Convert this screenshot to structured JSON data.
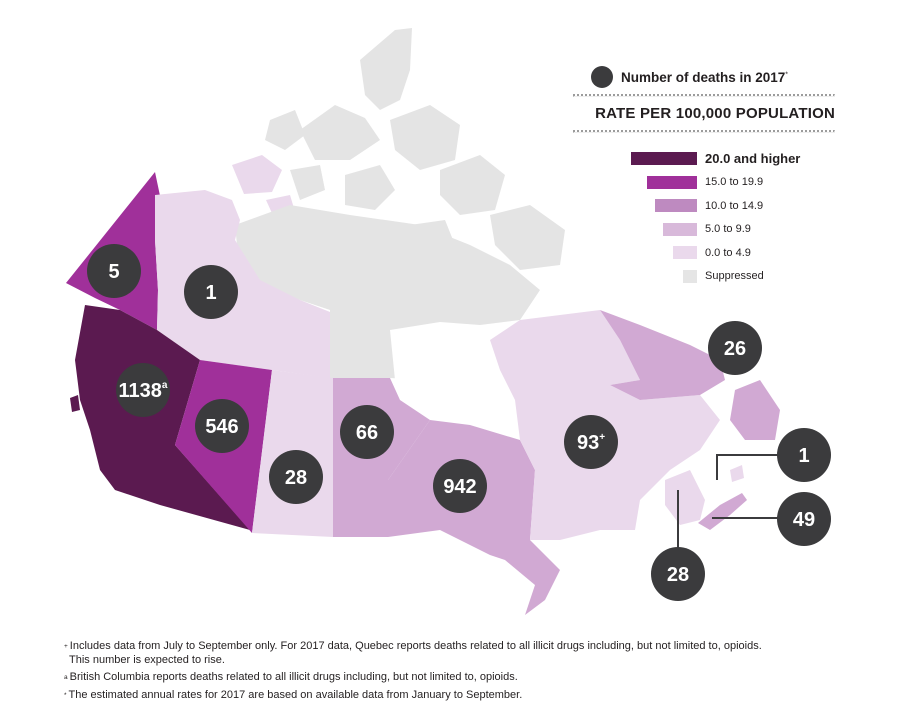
{
  "legend": {
    "count_label": "Number of deaths in 2017",
    "count_marker": "*",
    "rate_title": "RATE PER 100,000 POPULATION",
    "items": [
      {
        "label": "20.0 and higher",
        "color": "#5b1a50",
        "bold": true
      },
      {
        "label": "15.0 to 19.9",
        "color": "#a0309a"
      },
      {
        "label": "10.0 to 14.9",
        "color": "#be8ac0"
      },
      {
        "label": "5.0 to 9.9",
        "color": "#d8b9da"
      },
      {
        "label": "0.0 to 4.9",
        "color": "#ead9ec"
      },
      {
        "label": "Suppressed",
        "color": "#e5e5e5"
      }
    ]
  },
  "regions": [
    {
      "name": "British Columbia",
      "deaths": "1138",
      "marker": "a",
      "category": "20.0 and higher"
    },
    {
      "name": "Yukon",
      "deaths": "5",
      "marker": "",
      "category": "15.0 to 19.9"
    },
    {
      "name": "Northwest Territories",
      "deaths": "1",
      "marker": "",
      "category": "0.0 to 4.9"
    },
    {
      "name": "Nunavut",
      "deaths": "",
      "marker": "",
      "category": "Suppressed"
    },
    {
      "name": "Alberta",
      "deaths": "546",
      "marker": "",
      "category": "15.0 to 19.9"
    },
    {
      "name": "Saskatchewan",
      "deaths": "28",
      "marker": "",
      "category": "0.0 to 4.9"
    },
    {
      "name": "Manitoba",
      "deaths": "66",
      "marker": "",
      "category": "5.0 to 9.9"
    },
    {
      "name": "Ontario",
      "deaths": "942",
      "marker": "",
      "category": "5.0 to 9.9"
    },
    {
      "name": "Quebec",
      "deaths": "93",
      "marker": "+",
      "category": "0.0 to 4.9"
    },
    {
      "name": "Newfoundland and Labrador",
      "deaths": "26",
      "marker": "",
      "category": "5.0 to 9.9"
    },
    {
      "name": "Prince Edward Island",
      "deaths": "1",
      "marker": "",
      "category": "0.0 to 4.9"
    },
    {
      "name": "Nova Scotia",
      "deaths": "49",
      "marker": "",
      "category": "5.0 to 9.9"
    },
    {
      "name": "New Brunswick",
      "deaths": "28",
      "marker": "",
      "category": "0.0 to 4.9"
    }
  ],
  "footnotes": [
    {
      "marker": "+",
      "text": "Includes data from July to September only. For 2017 data, Quebec reports deaths related to all illicit drugs including, but not limited to, opioids.",
      "cont": "This number is expected to rise."
    },
    {
      "marker": "a",
      "text": "British Columbia reports deaths related to all illicit drugs including, but not limited to, opioids.",
      "cont": ""
    },
    {
      "marker": "*",
      "text": "The estimated annual rates for 2017 are based on available data from January to September.",
      "cont": ""
    }
  ]
}
